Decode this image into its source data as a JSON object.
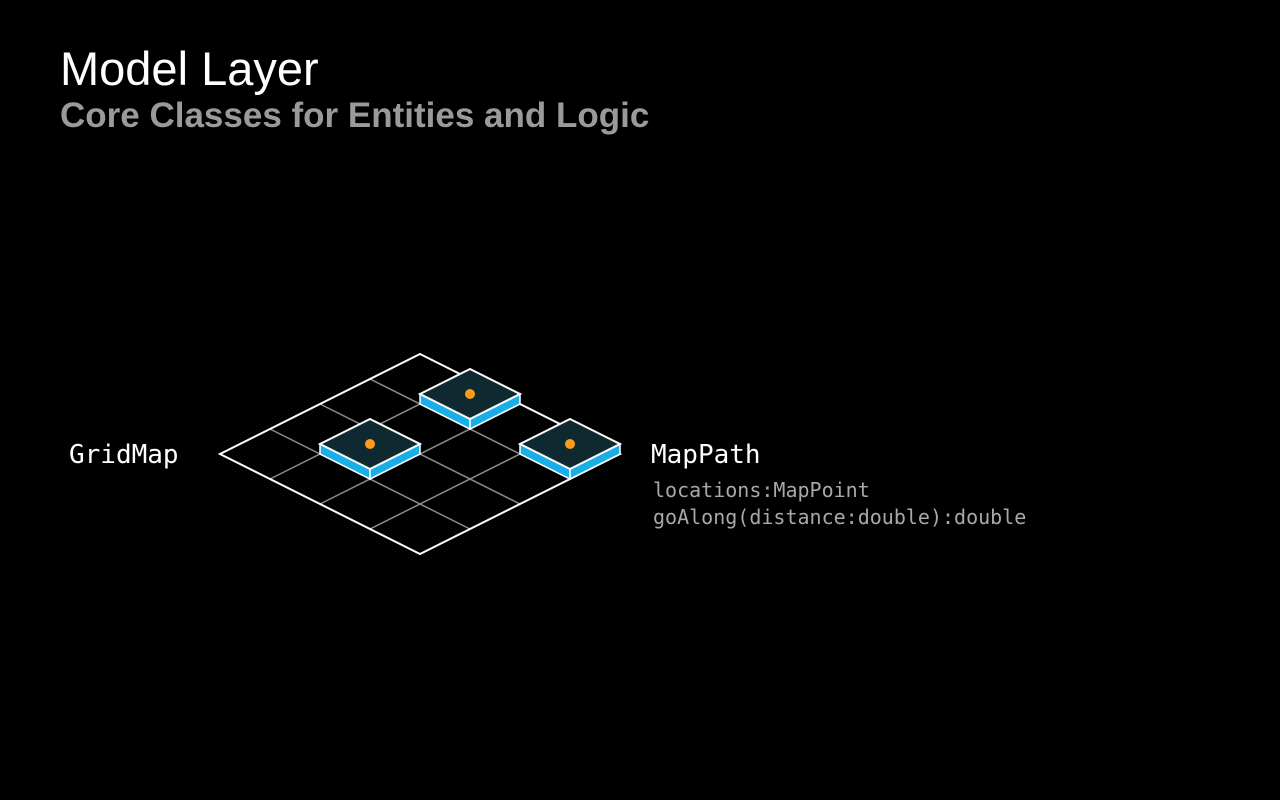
{
  "slide": {
    "title": "Model Layer",
    "subtitle": "Core Classes for Entities and Logic"
  },
  "diagram": {
    "left_class": {
      "name": "GridMap"
    },
    "right_class": {
      "name": "MapPath",
      "members": [
        "locations:MapPoint",
        "goAlong(distance:double):double"
      ]
    },
    "grid": {
      "rows": 4,
      "cols": 4
    },
    "path_cells": [
      {
        "row": 0,
        "col": 1
      },
      {
        "row": 0,
        "col": 3
      },
      {
        "row": 2,
        "col": 1
      }
    ],
    "colors": {
      "background": "#000000",
      "grid_outline": "#ffffff",
      "grid_inner": "#8a8a8a",
      "tile_side": "#19aee6",
      "tile_top": "#0e2a30",
      "marker": "#ff9a1a"
    }
  }
}
